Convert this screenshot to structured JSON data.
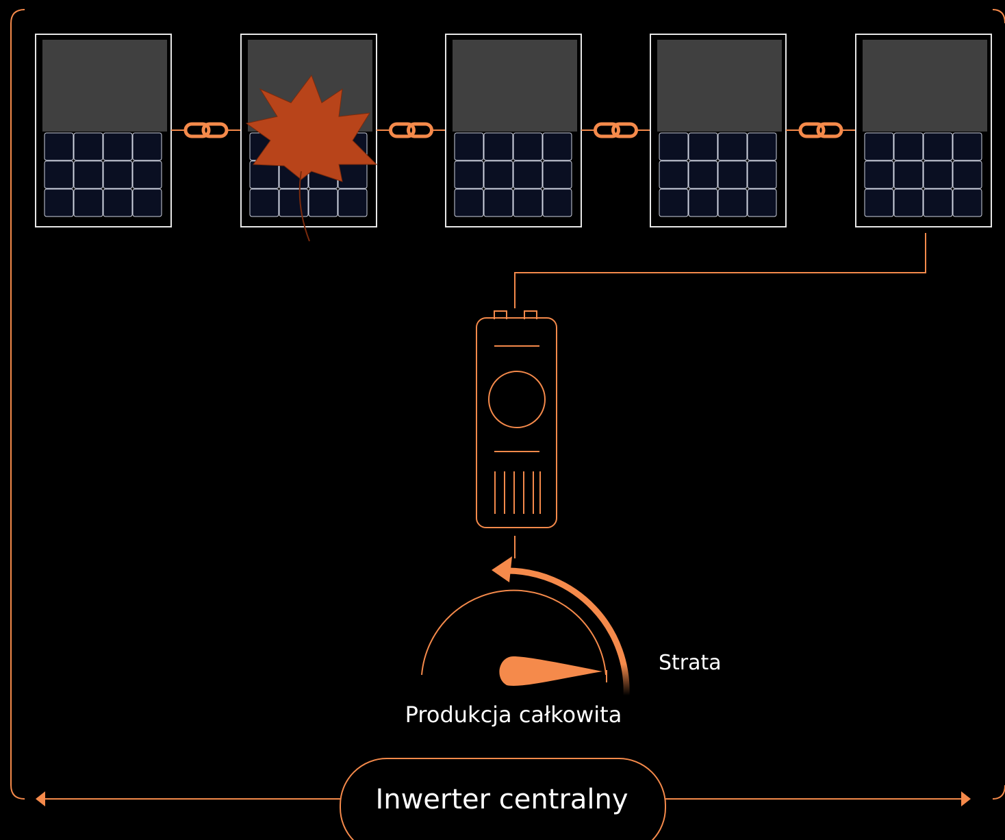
{
  "labels": {
    "loss": "Strata",
    "total": "Produkcja całkowita",
    "inverter": "Inwerter centralny"
  }
}
